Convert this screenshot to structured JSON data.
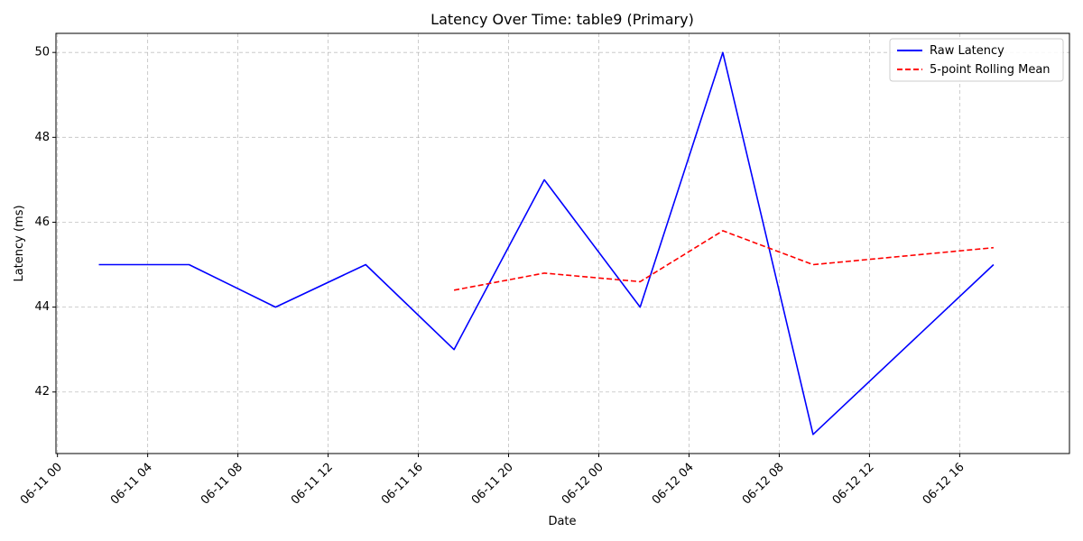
{
  "chart_data": {
    "type": "line",
    "title": "Latency Over Time: table9 (Primary)",
    "xlabel": "Date",
    "ylabel": "Latency (ms)",
    "x_is_datetime": true,
    "xlim": [
      "2025-06-10T23:56",
      "2025-06-12T20:52"
    ],
    "ylim": [
      40.55,
      50.45
    ],
    "x_ticks": [
      {
        "value": "2025-06-11T00:00",
        "label": "06-11 00"
      },
      {
        "value": "2025-06-11T04:00",
        "label": "06-11 04"
      },
      {
        "value": "2025-06-11T08:00",
        "label": "06-11 08"
      },
      {
        "value": "2025-06-11T12:00",
        "label": "06-11 12"
      },
      {
        "value": "2025-06-11T16:00",
        "label": "06-11 16"
      },
      {
        "value": "2025-06-11T20:00",
        "label": "06-11 20"
      },
      {
        "value": "2025-06-12T00:00",
        "label": "06-12 00"
      },
      {
        "value": "2025-06-12T04:00",
        "label": "06-12 04"
      },
      {
        "value": "2025-06-12T08:00",
        "label": "06-12 08"
      },
      {
        "value": "2025-06-12T12:00",
        "label": "06-12 12"
      },
      {
        "value": "2025-06-12T16:00",
        "label": "06-12 16"
      }
    ],
    "y_ticks": [
      {
        "value": 42,
        "label": "42"
      },
      {
        "value": 44,
        "label": "44"
      },
      {
        "value": 46,
        "label": "46"
      },
      {
        "value": 48,
        "label": "48"
      },
      {
        "value": 50,
        "label": "50"
      }
    ],
    "grid": true,
    "legend_position": "top-right",
    "series": [
      {
        "name": "Raw Latency",
        "color": "#0000ff",
        "style": "solid",
        "x": [
          "2025-06-11T01:50",
          "2025-06-11T05:50",
          "2025-06-11T09:40",
          "2025-06-11T13:40",
          "2025-06-11T17:35",
          "2025-06-11T21:35",
          "2025-06-12T01:50",
          "2025-06-12T05:30",
          "2025-06-12T09:30",
          "2025-06-12T17:30"
        ],
        "values": [
          45,
          45,
          44,
          45,
          43,
          47,
          44,
          50,
          41,
          45
        ]
      },
      {
        "name": "5-point Rolling Mean",
        "color": "#ff0000",
        "style": "dashed",
        "x": [
          "2025-06-11T17:35",
          "2025-06-11T21:35",
          "2025-06-12T01:50",
          "2025-06-12T05:30",
          "2025-06-12T09:30",
          "2025-06-12T17:30"
        ],
        "values": [
          44.4,
          44.8,
          44.6,
          45.8,
          45.0,
          45.4
        ]
      }
    ]
  }
}
